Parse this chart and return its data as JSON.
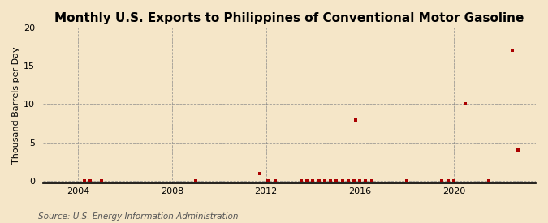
{
  "title": "Monthly U.S. Exports to Philippines of Conventional Motor Gasoline",
  "ylabel": "Thousand Barrels per Day",
  "source": "Source: U.S. Energy Information Administration",
  "background_color": "#f5e6c8",
  "marker_color": "#aa0000",
  "ylim": [
    -0.3,
    20
  ],
  "yticks": [
    0,
    5,
    10,
    15,
    20
  ],
  "xlim": [
    2002.5,
    2023.5
  ],
  "xticks": [
    2004,
    2008,
    2012,
    2016,
    2020
  ],
  "data_points": [
    [
      2004.25,
      0.05
    ],
    [
      2004.5,
      0.05
    ],
    [
      2005.0,
      0.05
    ],
    [
      2009.0,
      0.05
    ],
    [
      2011.75,
      1.0
    ],
    [
      2012.1,
      0.05
    ],
    [
      2012.4,
      0.05
    ],
    [
      2013.5,
      0.05
    ],
    [
      2013.75,
      0.05
    ],
    [
      2014.0,
      0.05
    ],
    [
      2014.25,
      0.05
    ],
    [
      2014.5,
      0.05
    ],
    [
      2014.75,
      0.05
    ],
    [
      2015.0,
      0.05
    ],
    [
      2015.25,
      0.05
    ],
    [
      2015.5,
      0.05
    ],
    [
      2015.75,
      0.05
    ],
    [
      2015.83,
      7.9
    ],
    [
      2016.0,
      0.05
    ],
    [
      2016.25,
      0.05
    ],
    [
      2016.5,
      0.05
    ],
    [
      2018.0,
      0.05
    ],
    [
      2019.5,
      0.05
    ],
    [
      2019.75,
      0.05
    ],
    [
      2020.0,
      0.05
    ],
    [
      2020.5,
      10.0
    ],
    [
      2021.5,
      0.05
    ],
    [
      2022.5,
      17.0
    ],
    [
      2022.75,
      4.0
    ]
  ],
  "grid_color": "#888888",
  "grid_linestyle": "--",
  "grid_linewidth": 0.6,
  "spine_color": "#000000",
  "tick_fontsize": 8,
  "ylabel_fontsize": 8,
  "title_fontsize": 11,
  "source_fontsize": 7.5
}
